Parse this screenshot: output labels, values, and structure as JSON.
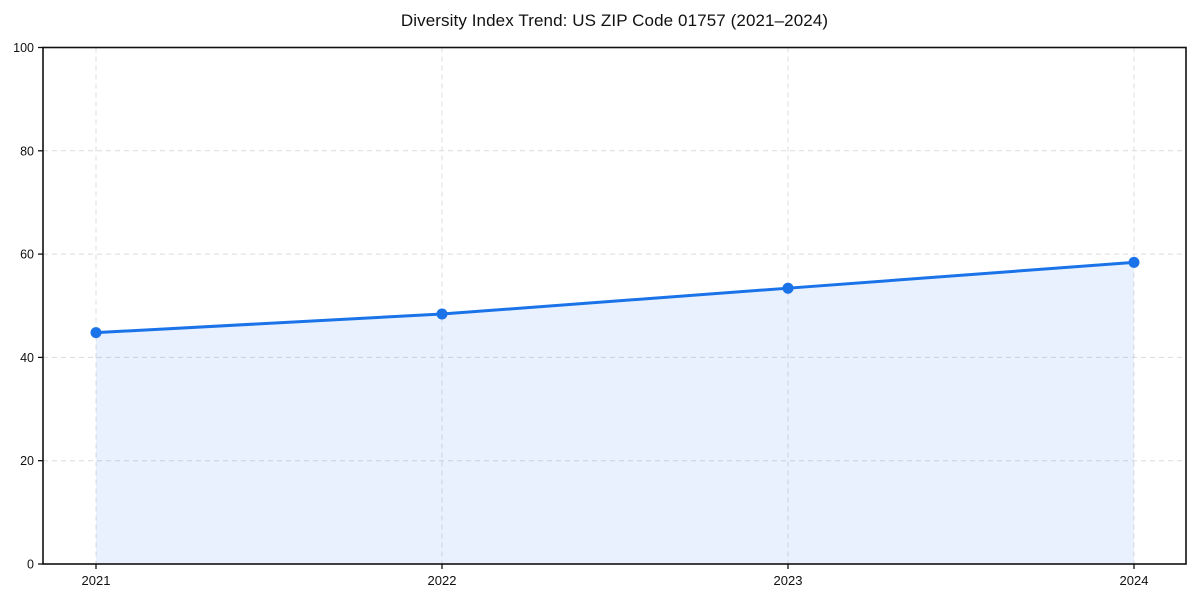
{
  "page": {
    "background": "#ffffff"
  },
  "chart_data": {
    "type": "area",
    "title": "Diversity Index Trend: US ZIP Code 01757 (2021–2024)",
    "x": [
      "2021",
      "2022",
      "2023",
      "2024"
    ],
    "series": [
      {
        "name": "Diversity Index",
        "values": [
          44.8,
          48.4,
          53.4,
          58.4
        ]
      }
    ],
    "xlabel": "",
    "ylabel": "",
    "ylim": [
      0,
      100
    ],
    "yticks": [
      0,
      20,
      40,
      60,
      80,
      100
    ],
    "grid": true,
    "grid_style": "dashed",
    "legend_position": "none",
    "line_color": "#1a73e8",
    "marker_color": "#1a73e8",
    "fill_color": "rgba(26,115,232,0.10)",
    "axis_color": "#111111",
    "grid_color": "#dcdcdc"
  }
}
